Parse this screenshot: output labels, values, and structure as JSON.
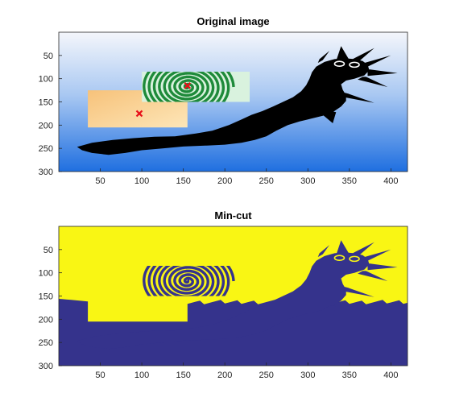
{
  "chart_data": [
    {
      "type": "image",
      "title": "Original image",
      "xlim": [
        0,
        420
      ],
      "ylim": [
        300,
        0
      ],
      "xticks": [
        50,
        100,
        150,
        200,
        250,
        300,
        350,
        400
      ],
      "yticks": [
        50,
        100,
        150,
        200,
        250,
        300
      ],
      "markers": [
        {
          "x": 155,
          "y": 115,
          "symbol": "x",
          "color": "#e8101a"
        },
        {
          "x": 97,
          "y": 175,
          "symbol": "x",
          "color": "#e8101a"
        }
      ],
      "regions": [
        {
          "label": "spiral-patch",
          "x": [
            100,
            230
          ],
          "y": [
            85,
            150
          ],
          "colors": [
            "#1e8a3a",
            "#ffffff"
          ]
        },
        {
          "label": "orange-patch",
          "x": [
            35,
            155
          ],
          "y": [
            125,
            205
          ],
          "colors": [
            "#f7c27a",
            "#fde6b8"
          ]
        }
      ],
      "colors": {
        "sky_top": "#f4f6fb",
        "sky_bottom": "#1f6fe0",
        "caterpillar": "#000000"
      }
    },
    {
      "type": "image",
      "title": "Min-cut",
      "xlim": [
        0,
        420
      ],
      "ylim": [
        300,
        0
      ],
      "xticks": [
        50,
        100,
        150,
        200,
        250,
        300,
        350,
        400
      ],
      "yticks": [
        50,
        100,
        150,
        200,
        250,
        300
      ],
      "colors": {
        "foreground": "#f9f614",
        "background": "#35338c"
      }
    }
  ]
}
